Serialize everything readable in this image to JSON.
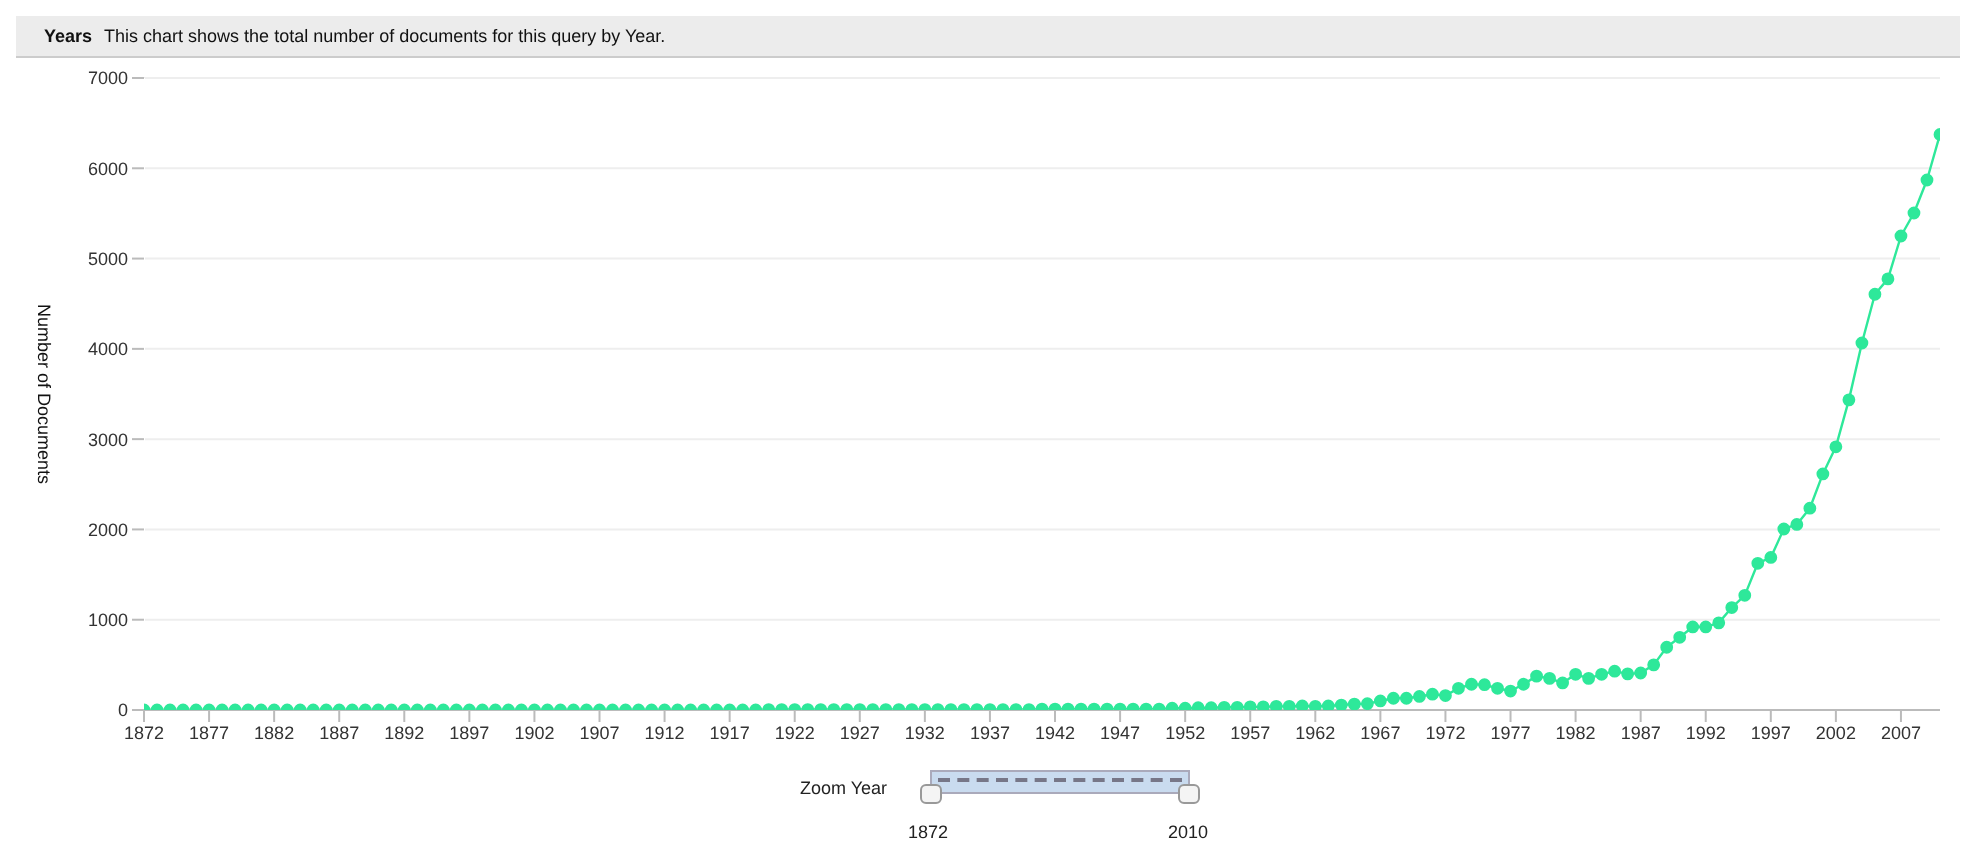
{
  "chart_data": {
    "type": "line",
    "title": "Years",
    "subtitle": "This chart shows the total number of documents for this query by Year.",
    "ylabel": "Number of Documents",
    "x": [
      1872,
      1873,
      1874,
      1875,
      1876,
      1877,
      1878,
      1879,
      1880,
      1881,
      1882,
      1883,
      1884,
      1885,
      1886,
      1887,
      1888,
      1889,
      1890,
      1891,
      1892,
      1893,
      1894,
      1895,
      1896,
      1897,
      1898,
      1899,
      1900,
      1901,
      1902,
      1903,
      1904,
      1905,
      1906,
      1907,
      1908,
      1909,
      1910,
      1911,
      1912,
      1913,
      1914,
      1915,
      1916,
      1917,
      1918,
      1919,
      1920,
      1921,
      1922,
      1923,
      1924,
      1925,
      1926,
      1927,
      1928,
      1929,
      1930,
      1931,
      1932,
      1933,
      1934,
      1935,
      1936,
      1937,
      1938,
      1939,
      1940,
      1941,
      1942,
      1943,
      1944,
      1945,
      1946,
      1947,
      1948,
      1949,
      1950,
      1951,
      1952,
      1953,
      1954,
      1955,
      1956,
      1957,
      1958,
      1959,
      1960,
      1961,
      1962,
      1963,
      1964,
      1965,
      1966,
      1967,
      1968,
      1969,
      1970,
      1971,
      1972,
      1973,
      1974,
      1975,
      1976,
      1977,
      1978,
      1979,
      1980,
      1981,
      1982,
      1983,
      1984,
      1985,
      1986,
      1987,
      1988,
      1989,
      1990,
      1991,
      1992,
      1993,
      1994,
      1995,
      1996,
      1997,
      1998,
      1999,
      2000,
      2001,
      2002,
      2003,
      2004,
      2005,
      2006,
      2007,
      2008,
      2009,
      2010
    ],
    "series": [
      {
        "color": "#2ee89a",
        "values": [
          0,
          0,
          0,
          0,
          0,
          0,
          0,
          0,
          0,
          0,
          0,
          0,
          0,
          0,
          0,
          0,
          0,
          0,
          0,
          0,
          0,
          0,
          0,
          0,
          0,
          0,
          0,
          0,
          0,
          0,
          0,
          0,
          0,
          0,
          0,
          0,
          0,
          0,
          0,
          0,
          0,
          0,
          0,
          0,
          0,
          0,
          0,
          0,
          5,
          5,
          5,
          5,
          5,
          5,
          5,
          5,
          5,
          5,
          5,
          5,
          5,
          5,
          5,
          5,
          5,
          5,
          5,
          5,
          5,
          10,
          10,
          10,
          10,
          10,
          10,
          10,
          10,
          10,
          10,
          20,
          20,
          25,
          25,
          30,
          30,
          35,
          35,
          40,
          40,
          45,
          40,
          45,
          55,
          65,
          70,
          100,
          130,
          130,
          150,
          175,
          160,
          240,
          285,
          280,
          240,
          210,
          285,
          375,
          350,
          300,
          395,
          350,
          395,
          430,
          400,
          410,
          500,
          695,
          805,
          920,
          920,
          965,
          1135,
          1270,
          1625,
          1690,
          2005,
          2055,
          2235,
          2615,
          2915,
          3435,
          4065,
          4605,
          4775,
          5250,
          5505,
          5870,
          6375
        ]
      }
    ],
    "xlim": [
      1872,
      2010
    ],
    "xticks": [
      1872,
      1877,
      1882,
      1887,
      1892,
      1897,
      1902,
      1907,
      1912,
      1917,
      1922,
      1927,
      1932,
      1937,
      1942,
      1947,
      1952,
      1957,
      1962,
      1967,
      1972,
      1977,
      1982,
      1987,
      1992,
      1997,
      2002,
      2007
    ],
    "ylim": [
      0,
      7000
    ],
    "yticks": [
      0,
      1000,
      2000,
      3000,
      4000,
      5000,
      6000,
      7000
    ],
    "grid": "y",
    "marker": "circle",
    "line_style": "solid",
    "legend": false,
    "annotations": [
      "Zoom Year",
      "1872",
      "2010"
    ]
  }
}
